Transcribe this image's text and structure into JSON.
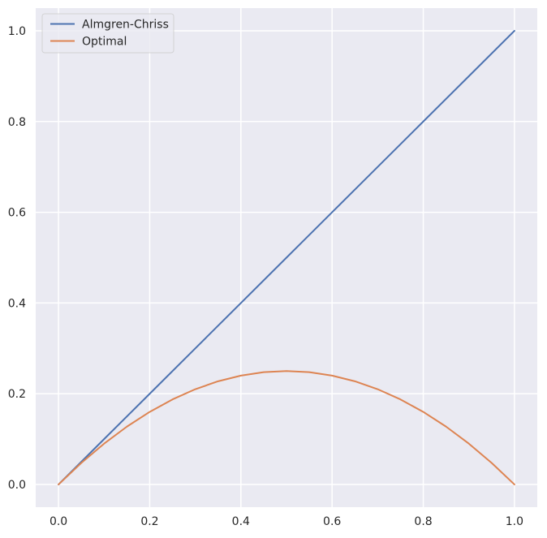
{
  "chart_data": {
    "type": "line",
    "title": "",
    "xlabel": "",
    "ylabel": "",
    "xlim": [
      -0.05,
      1.05
    ],
    "ylim": [
      -0.05,
      1.05
    ],
    "x_ticks": [
      0.0,
      0.2,
      0.4,
      0.6,
      0.8,
      1.0
    ],
    "y_ticks": [
      0.0,
      0.2,
      0.4,
      0.6,
      0.8,
      1.0
    ],
    "x_tick_labels": [
      "0.0",
      "0.2",
      "0.4",
      "0.6",
      "0.8",
      "1.0"
    ],
    "y_tick_labels": [
      "0.0",
      "0.2",
      "0.4",
      "0.6",
      "0.8",
      "1.0"
    ],
    "grid": true,
    "legend_position": "top-left",
    "background_color": "#eaeaf2",
    "grid_color": "#ffffff",
    "series": [
      {
        "name": "Almgren-Chriss",
        "color": "#4c72b0",
        "x": [
          0.0,
          0.1,
          0.2,
          0.3,
          0.4,
          0.5,
          0.6,
          0.7,
          0.8,
          0.9,
          1.0
        ],
        "y": [
          0.0,
          0.1,
          0.2,
          0.3,
          0.4,
          0.5,
          0.6,
          0.7,
          0.8,
          0.9,
          1.0
        ]
      },
      {
        "name": "Optimal",
        "color": "#dd8452",
        "x": [
          0.0,
          0.05,
          0.1,
          0.15,
          0.2,
          0.25,
          0.3,
          0.35,
          0.4,
          0.45,
          0.5,
          0.55,
          0.6,
          0.65,
          0.7,
          0.75,
          0.8,
          0.85,
          0.9,
          0.95,
          1.0
        ],
        "y": [
          0.0,
          0.0475,
          0.09,
          0.1275,
          0.16,
          0.1875,
          0.21,
          0.2275,
          0.24,
          0.2475,
          0.25,
          0.2475,
          0.24,
          0.2275,
          0.21,
          0.1875,
          0.16,
          0.1275,
          0.09,
          0.0475,
          0.0
        ]
      }
    ]
  }
}
